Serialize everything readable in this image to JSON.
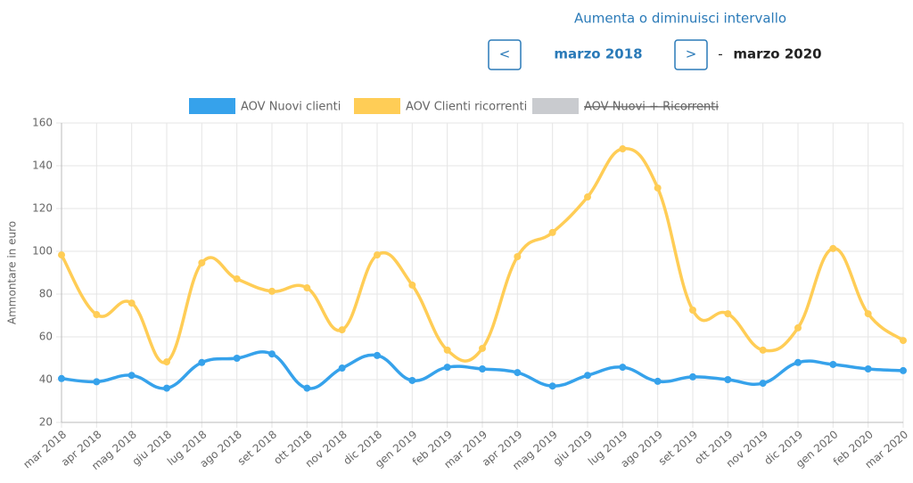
{
  "controls": {
    "heading": "Aumenta o diminuisci intervallo",
    "prev": "<",
    "start": "marzo 2018",
    "next": ">",
    "separator": "-",
    "end": "marzo 2020"
  },
  "chart_data": {
    "type": "line",
    "y_label": "Ammontare in euro",
    "categories": [
      "mar 2018",
      "apr 2018",
      "mag 2018",
      "giu 2018",
      "lug 2018",
      "ago 2018",
      "set 2018",
      "ott 2018",
      "nov 2018",
      "dic 2018",
      "gen 2019",
      "feb 2019",
      "mar 2019",
      "apr 2019",
      "mag 2019",
      "giu 2019",
      "lug 2019",
      "ago 2019",
      "set 2019",
      "ott 2019",
      "nov 2019",
      "dic 2019",
      "gen 2020",
      "feb 2020",
      "mar 2020"
    ],
    "series": [
      {
        "name": "AOV Nuovi clienti",
        "color": "#36a2eb",
        "values": [
          40.5,
          39,
          42,
          36,
          48,
          50,
          52,
          36,
          45.4,
          51.3,
          39.6,
          45.8,
          45,
          43.3,
          37,
          42,
          45.8,
          39.2,
          41.3,
          40,
          38.3,
          48,
          47.1,
          45,
          44.2
        ]
      },
      {
        "name": "AOV Clienti ricorrenti",
        "color": "#ffcd56",
        "values": [
          98.3,
          70.4,
          75.8,
          48.3,
          94.6,
          87.1,
          81.3,
          82.9,
          63.3,
          98.3,
          84.2,
          53.8,
          54.6,
          97.5,
          108.8,
          125.4,
          147.9,
          129.6,
          72.5,
          70.8,
          53.8,
          64.2,
          101.3,
          70.8,
          58.3
        ]
      }
    ],
    "hidden_series": [
      {
        "name": "AOV Nuovi + Ricorrenti",
        "color": "#c9cbcf"
      }
    ],
    "ylim": [
      20,
      160
    ],
    "yticks": [
      20,
      40,
      60,
      80,
      100,
      120,
      140,
      160
    ],
    "grid": true
  }
}
